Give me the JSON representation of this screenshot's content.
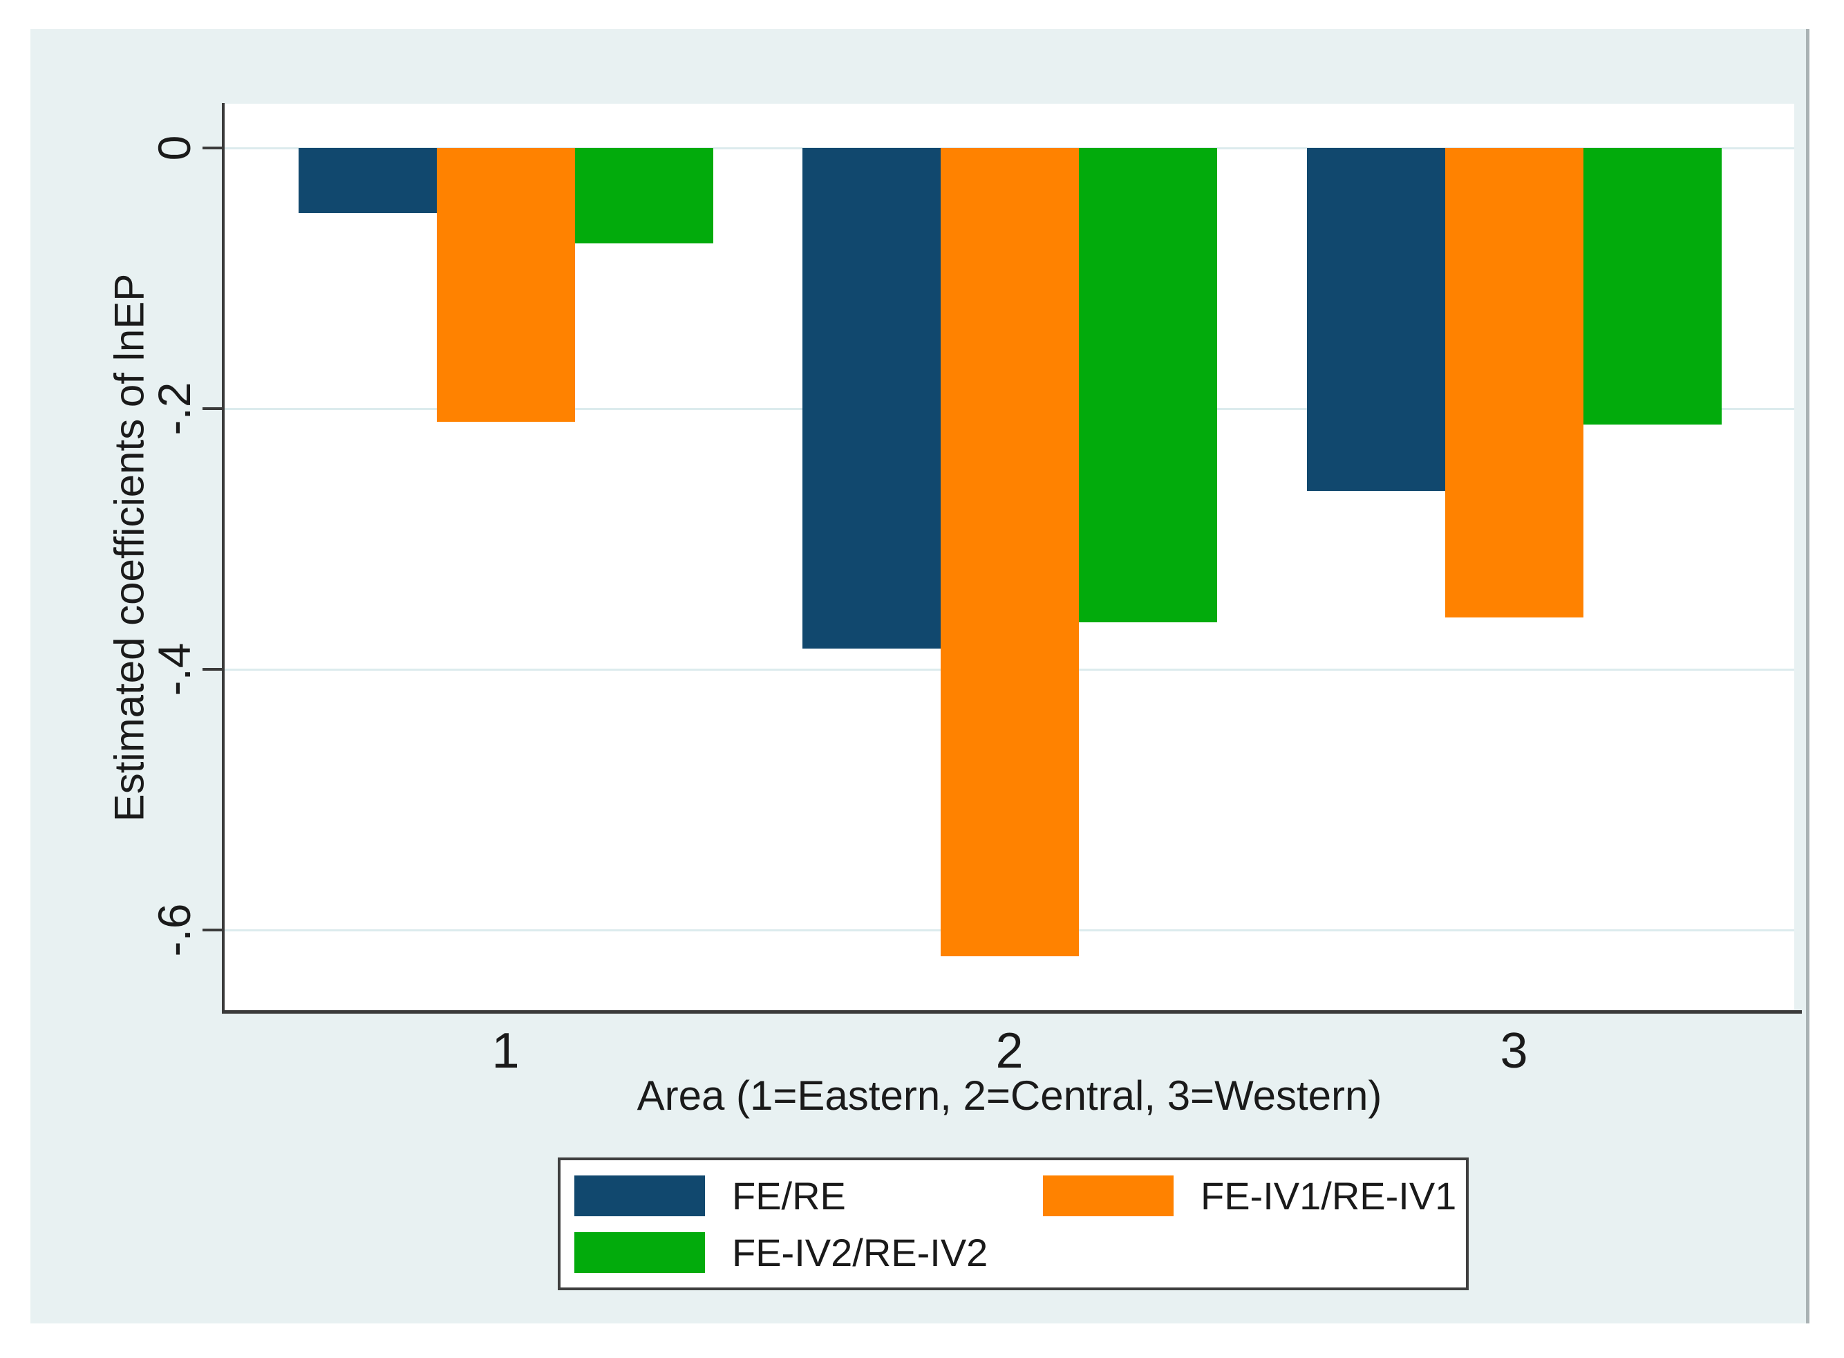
{
  "chart_data": {
    "type": "bar",
    "categories": [
      "1",
      "2",
      "3"
    ],
    "series": [
      {
        "name": "FE/RE",
        "color": "#11486e",
        "values": [
          -0.05,
          -0.384,
          -0.263
        ]
      },
      {
        "name": "FE-IV1/RE-IV1",
        "color": "#ff8200",
        "values": [
          -0.21,
          -0.62,
          -0.36
        ]
      },
      {
        "name": "FE-IV2/RE-IV2",
        "color": "#02ab0c",
        "values": [
          -0.073,
          -0.364,
          -0.212
        ]
      }
    ],
    "title": "",
    "xlabel": "Area (1=Eastern, 2=Central, 3=Western)",
    "ylabel": "Estimated coefficients of lnEP",
    "ylim": [
      -0.66,
      0.03
    ],
    "yticks": [
      0,
      -0.2,
      -0.4,
      -0.6
    ],
    "ytick_labels": [
      "0",
      "-.2",
      "-.4",
      "-.6"
    ],
    "grid": true,
    "legend_position": "bottom-center",
    "figure_background": "#e8f1f2",
    "plot_background": "#ffffff"
  }
}
